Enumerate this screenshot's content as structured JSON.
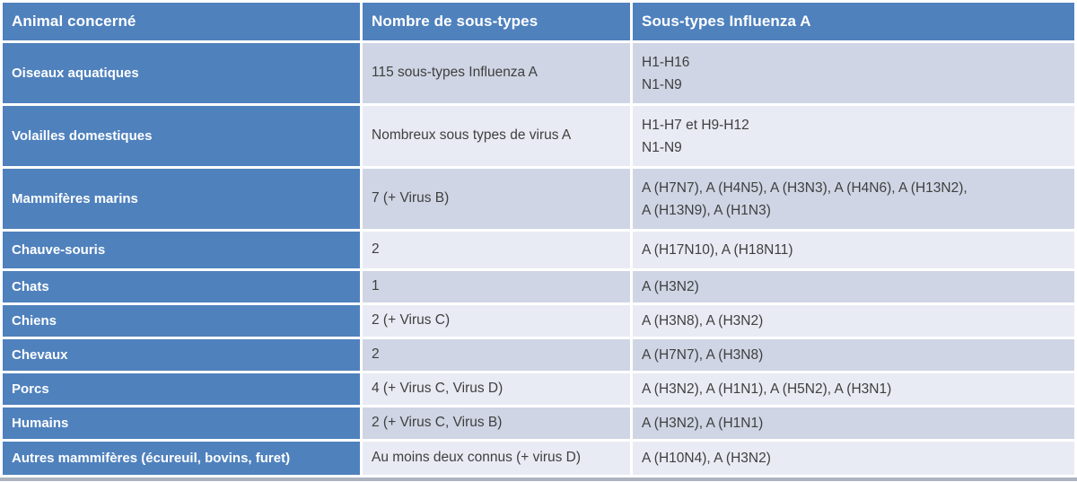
{
  "colors": {
    "accent_blue": "#4F81BD",
    "band_dark": "#CFD5E4",
    "band_light": "#E9EBF4",
    "header_text": "#FFFFFF",
    "body_text": "#3F3F3F",
    "bottom_edge": "#ADB3BF"
  },
  "table": {
    "headers": [
      "Animal concerné",
      "Nombre de sous-types",
      "Sous-types Influenza A"
    ],
    "rows": [
      {
        "animal": "Oiseaux aquatiques",
        "count": "115 sous-types Influenza A",
        "subtypes": [
          "H1-H16",
          "N1-N9"
        ]
      },
      {
        "animal": "Volailles domestiques",
        "count": "Nombreux sous types de virus A",
        "subtypes": [
          "H1-H7 et H9-H12",
          "N1-N9"
        ]
      },
      {
        "animal": "Mammifères marins",
        "count": "7 (+ Virus B)",
        "subtypes": [
          "A (H7N7), A (H4N5), A (H3N3), A (H4N6), A (H13N2),",
          "A (H13N9), A (H1N3)"
        ]
      },
      {
        "animal": "Chauve-souris",
        "count": "2",
        "subtypes": [
          "A (H17N10), A (H18N11)"
        ]
      },
      {
        "animal": "Chats",
        "count": "1",
        "subtypes": [
          "A (H3N2)"
        ]
      },
      {
        "animal": "Chiens",
        "count": "2 (+ Virus C)",
        "subtypes": [
          "A (H3N8), A (H3N2)"
        ]
      },
      {
        "animal": "Chevaux",
        "count": "2",
        "subtypes": [
          "A (H7N7), A (H3N8)"
        ]
      },
      {
        "animal": "Porcs",
        "count": "4 (+ Virus C, Virus D)",
        "subtypes": [
          "A (H3N2), A (H1N1), A (H5N2), A (H3N1)"
        ]
      },
      {
        "animal": "Humains",
        "count": "2 (+ Virus C, Virus B)",
        "subtypes": [
          "A (H3N2), A (H1N1)"
        ]
      },
      {
        "animal": "Autres mammifères (écureuil, bovins, furet)",
        "count": "Au moins deux connus (+ virus D)",
        "subtypes": [
          "A (H10N4), A (H3N2)"
        ]
      }
    ]
  }
}
